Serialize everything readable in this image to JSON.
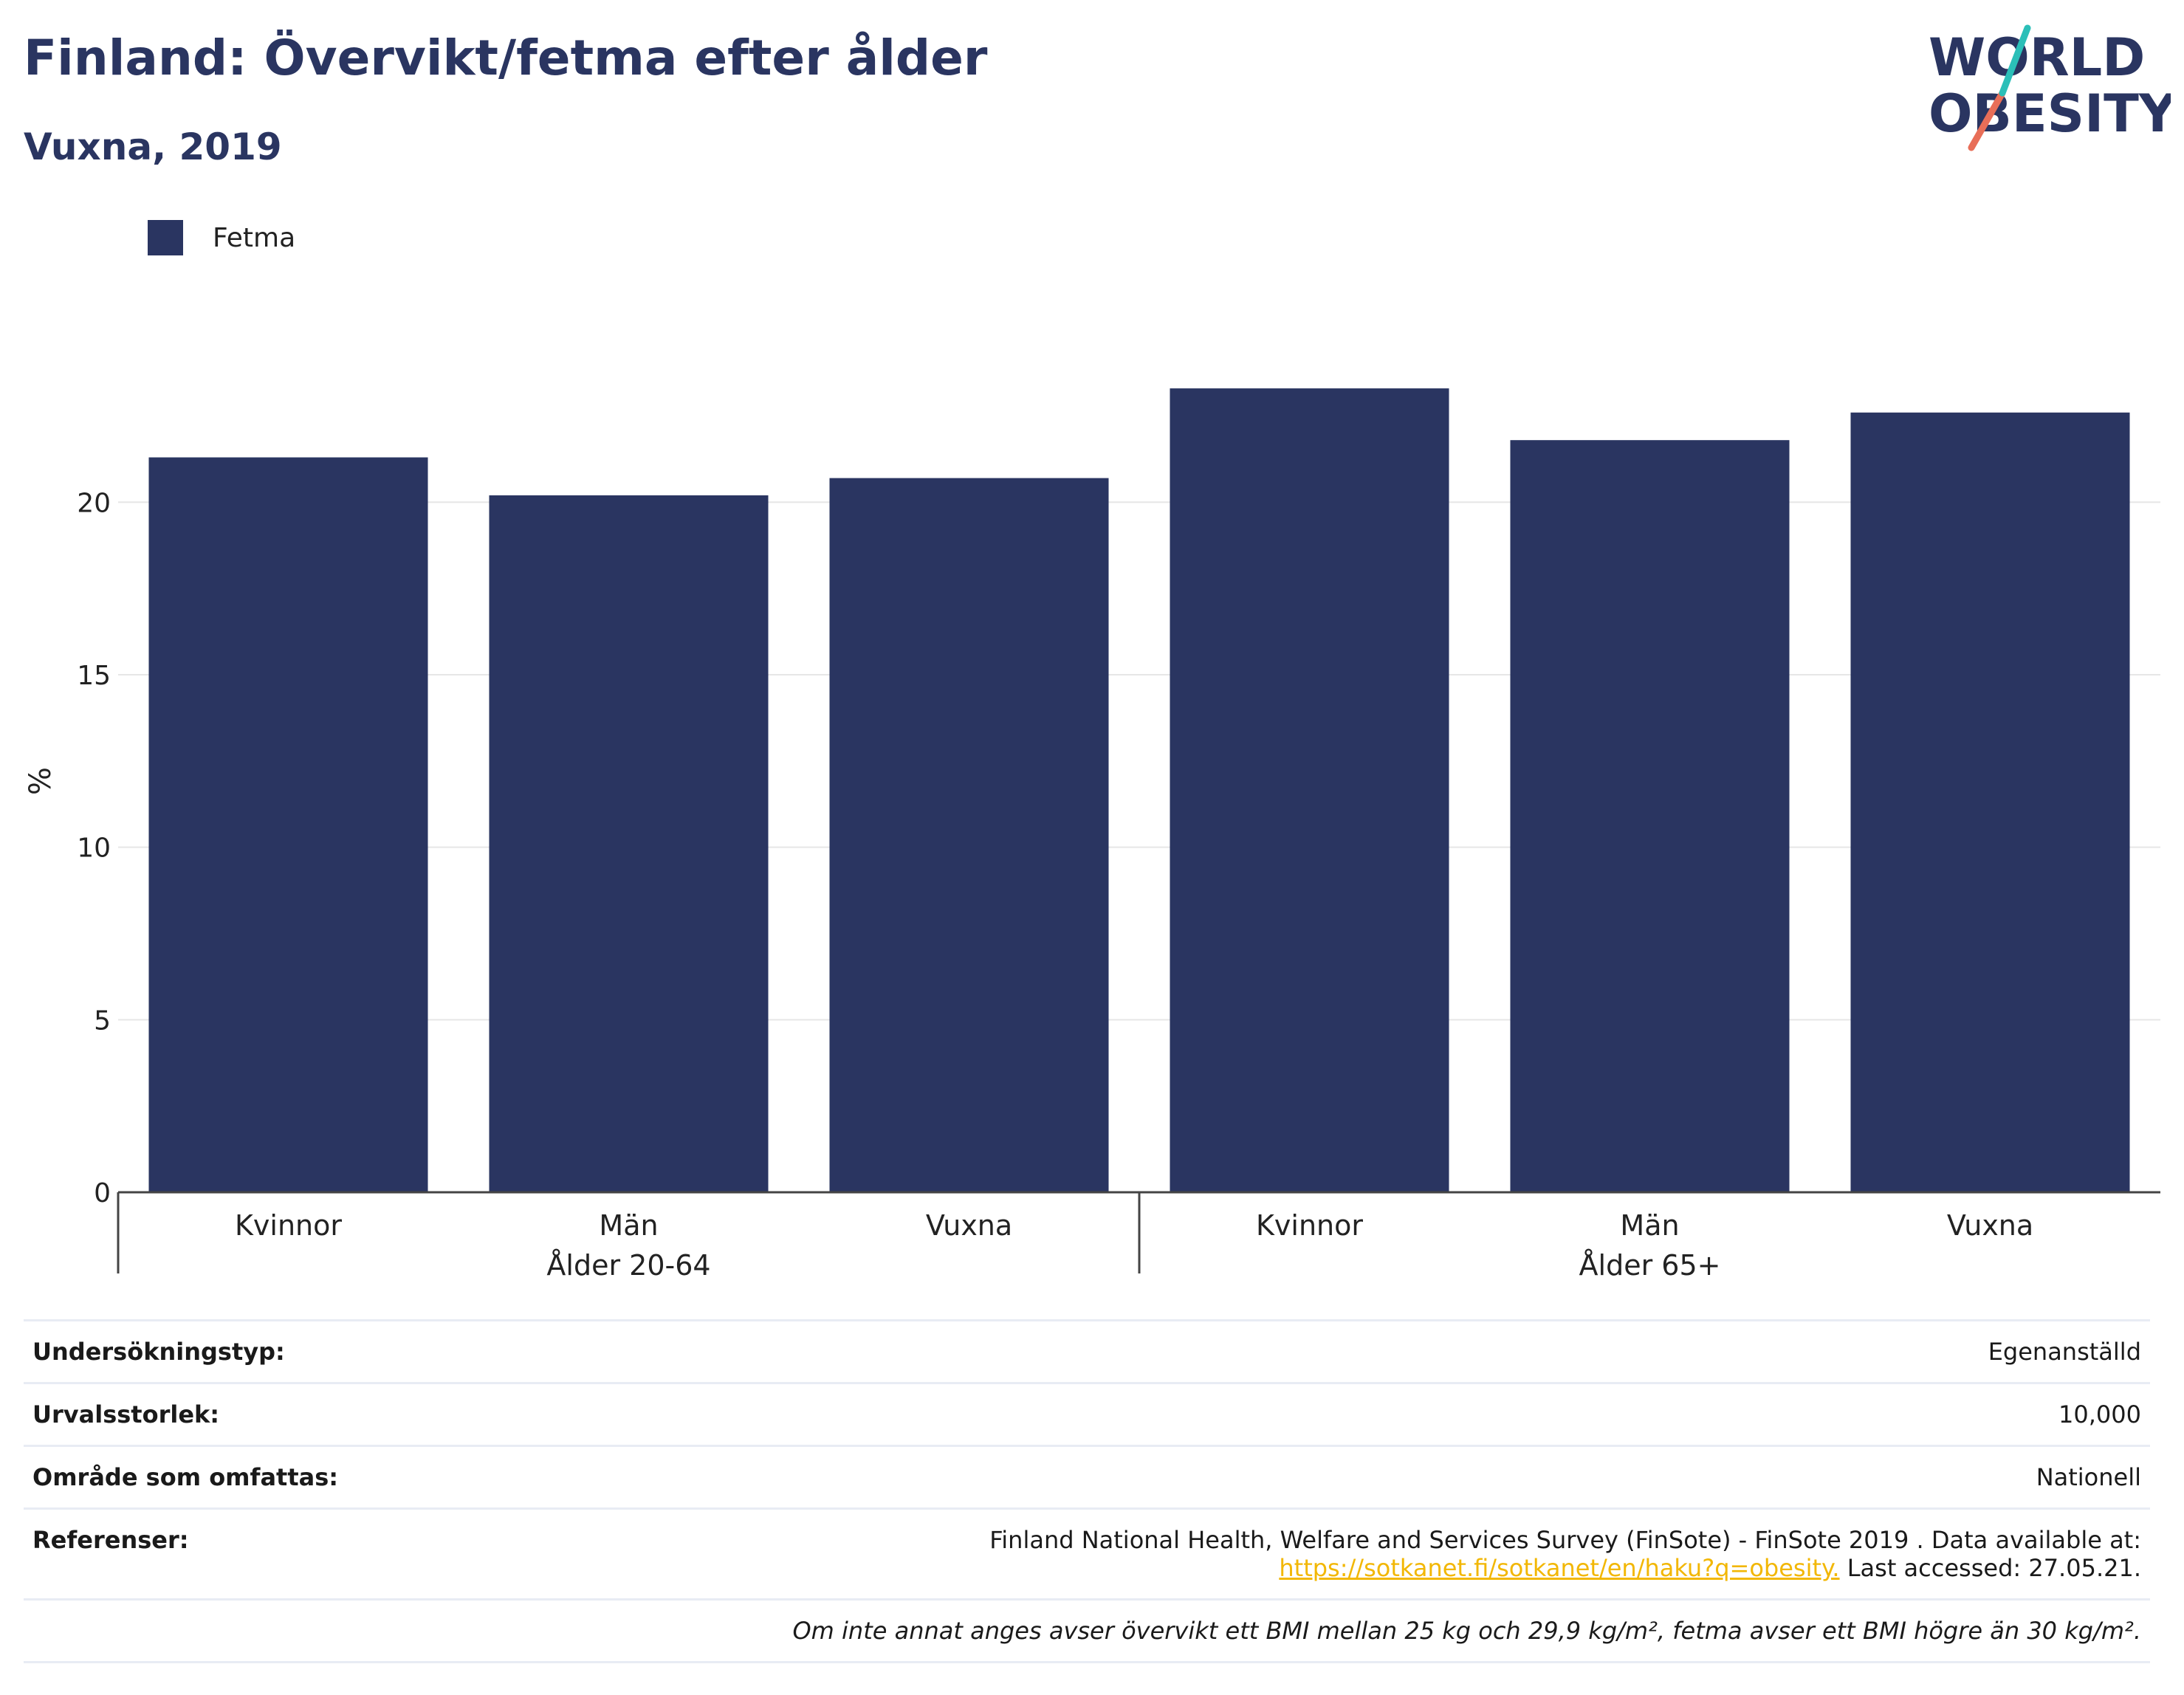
{
  "header": {
    "title": "Finland: Övervikt/fetma efter ålder",
    "subtitle": "Vuxna, 2019",
    "logo_text": [
      "WORLD",
      "OBESITY"
    ]
  },
  "colors": {
    "bar": "#2a3561",
    "title": "#2a3561",
    "logo_teal": "#2bbfb8",
    "logo_coral": "#e86e58",
    "link": "#f2b705",
    "grid": "#e6e6e6"
  },
  "chart_data": {
    "type": "bar",
    "legend": [
      "Fetma"
    ],
    "legend_placement": "top-left",
    "groups": [
      {
        "label": "Ålder 20-64",
        "categories": [
          "Kvinnor",
          "Män",
          "Vuxna"
        ]
      },
      {
        "label": "Ålder 65+",
        "categories": [
          "Kvinnor",
          "Män",
          "Vuxna"
        ]
      }
    ],
    "series": [
      {
        "name": "Fetma",
        "values": [
          21.3,
          20.2,
          20.7,
          23.3,
          21.8,
          22.6
        ]
      }
    ],
    "ylabel": "%",
    "yticks": [
      0,
      5,
      10,
      15,
      20
    ],
    "ylim": [
      0,
      24.5
    ],
    "grid": true
  },
  "info": {
    "rows": [
      {
        "key": "Undersökningstyp:",
        "value": "Egenanställd"
      },
      {
        "key": "Urvalsstorlek:",
        "value": "10,000"
      },
      {
        "key": "Område som omfattas:",
        "value": "Nationell"
      }
    ],
    "references": {
      "key": "Referenser:",
      "text": "Finland National Health, Welfare and Services Survey (FinSote) - FinSote 2019 . Data available at:",
      "link": "https://sotkanet.fi/sotkanet/en/haku?q=obesity.",
      "accessed": "Last accessed: 27.05.21."
    },
    "footnote": "Om inte annat anges avser övervikt ett BMI mellan 25 kg och 29,9 kg/m², fetma avser ett BMI högre än 30 kg/m²."
  }
}
